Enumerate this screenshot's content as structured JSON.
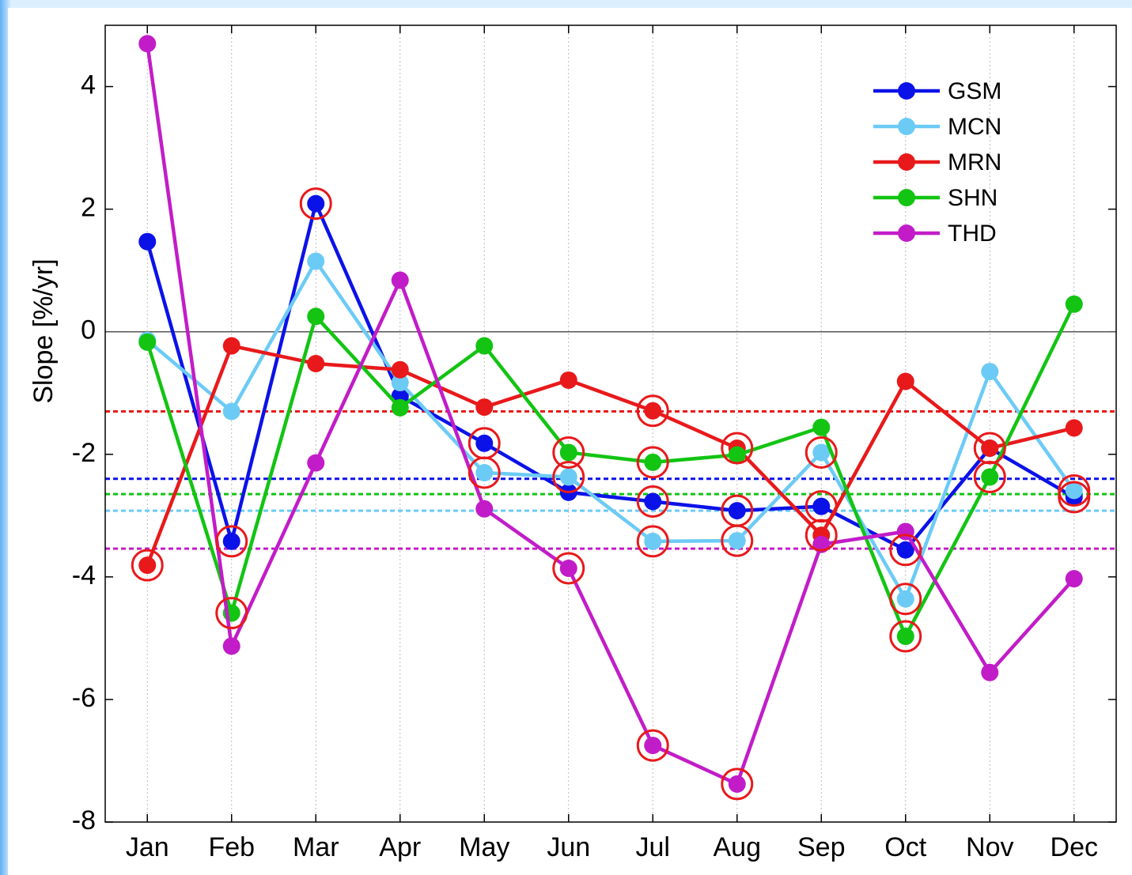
{
  "chart_data": {
    "type": "line",
    "y_label": "Slope [%/yr]",
    "categories": [
      "Jan",
      "Feb",
      "Mar",
      "Apr",
      "May",
      "Jun",
      "Jul",
      "Aug",
      "Sep",
      "Oct",
      "Nov",
      "Dec"
    ],
    "ylim": [
      -8,
      5
    ],
    "yticks": [
      -8,
      -6,
      -4,
      -2,
      0,
      2,
      4
    ],
    "grid": true,
    "zero_line": true,
    "legend": "upper right",
    "highlight_color": "#e8191b",
    "series": [
      {
        "name": "GSM",
        "color": "#0b12e8",
        "mean": -2.4,
        "values": [
          1.47,
          -3.42,
          2.09,
          -1.05,
          -1.82,
          -2.62,
          -2.77,
          -2.92,
          -2.85,
          -3.56,
          -1.9,
          -2.7
        ],
        "significant": [
          false,
          true,
          true,
          false,
          true,
          false,
          true,
          true,
          true,
          true,
          false,
          true
        ]
      },
      {
        "name": "MCN",
        "color": "#6ccbf5",
        "mean": -2.92,
        "values": [
          -0.14,
          -1.3,
          1.15,
          -0.83,
          -2.3,
          -2.37,
          -3.42,
          -3.41,
          -1.97,
          -4.36,
          -0.65,
          -2.59
        ],
        "significant": [
          false,
          false,
          false,
          false,
          true,
          true,
          true,
          true,
          true,
          true,
          false,
          true
        ]
      },
      {
        "name": "MRN",
        "color": "#e8191b",
        "mean": -1.3,
        "values": [
          -3.81,
          -0.23,
          -0.52,
          -0.62,
          -1.23,
          -0.79,
          -1.29,
          -1.9,
          -3.32,
          -0.81,
          -1.9,
          -1.57
        ],
        "significant": [
          true,
          false,
          false,
          false,
          false,
          false,
          true,
          true,
          true,
          false,
          true,
          false
        ]
      },
      {
        "name": "SHN",
        "color": "#13c413",
        "mean": -2.65,
        "values": [
          -0.17,
          -4.59,
          0.25,
          -1.24,
          -0.23,
          -1.97,
          -2.13,
          -2.01,
          -1.56,
          -4.97,
          -2.37,
          0.45
        ],
        "significant": [
          false,
          true,
          false,
          false,
          false,
          true,
          true,
          false,
          false,
          true,
          true,
          false
        ]
      },
      {
        "name": "THD",
        "color": "#c21cc8",
        "mean": -3.54,
        "values": [
          4.7,
          -5.13,
          -2.14,
          0.84,
          -2.89,
          -3.86,
          -6.75,
          -7.38,
          -3.47,
          -3.26,
          -5.56,
          -4.03
        ],
        "significant": [
          false,
          false,
          false,
          false,
          false,
          true,
          true,
          true,
          false,
          false,
          false,
          false
        ]
      }
    ]
  }
}
